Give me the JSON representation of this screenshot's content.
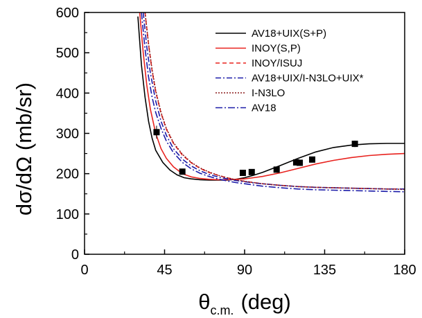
{
  "chart_data": {
    "type": "line",
    "title": "",
    "ylabel": "dσ/dΩ (mb/sr)",
    "xlabel_main": "θ",
    "xlabel_sub": "c.m.",
    "xlabel_unit": "(deg)",
    "xlim": [
      0,
      180
    ],
    "ylim": [
      0,
      600
    ],
    "xticks": [
      0,
      45,
      90,
      135,
      180
    ],
    "yticks": [
      0,
      100,
      200,
      300,
      400,
      500,
      600
    ],
    "grid": false,
    "legend_position": "top-right",
    "series": [
      {
        "name": "AV18+UIX(S+P)",
        "color": "#000000",
        "dash": "solid",
        "x": [
          30,
          32,
          34,
          36,
          38,
          40,
          44,
          48,
          52,
          56,
          60,
          65,
          70,
          75,
          80,
          85,
          90,
          95,
          100,
          110,
          120,
          130,
          140,
          150,
          160,
          170,
          180
        ],
        "y": [
          590,
          470,
          390,
          330,
          288,
          258,
          228,
          209,
          197,
          190,
          187,
          185,
          184,
          184,
          184,
          186,
          190,
          196,
          203,
          220,
          238,
          254,
          265,
          271,
          274,
          275,
          275
        ]
      },
      {
        "name": "INOY(S,P)",
        "color": "#e8211d",
        "dash": "solid",
        "x": [
          31,
          33,
          35,
          37,
          40,
          43,
          46,
          50,
          55,
          60,
          65,
          70,
          75,
          80,
          85,
          90,
          95,
          100,
          110,
          120,
          130,
          140,
          150,
          160,
          170,
          180
        ],
        "y": [
          600,
          500,
          420,
          360,
          300,
          262,
          238,
          217,
          200,
          192,
          188,
          186,
          185,
          185,
          186,
          187,
          190,
          193,
          202,
          213,
          224,
          233,
          240,
          245,
          248,
          250
        ]
      },
      {
        "name": "INOY/ISUJ",
        "color": "#e8211d",
        "dash": "6,4",
        "x": [
          34,
          36,
          38,
          40,
          43,
          46,
          50,
          55,
          60,
          65,
          70,
          75,
          80,
          85,
          90,
          95,
          100,
          110,
          120,
          130,
          140,
          150,
          160,
          170,
          180
        ],
        "y": [
          600,
          520,
          455,
          403,
          350,
          310,
          275,
          246,
          227,
          213,
          203,
          196,
          190,
          185,
          181,
          178,
          175,
          171,
          168,
          166,
          165,
          164,
          163,
          162,
          162
        ]
      },
      {
        "name": "AV18+UIX/I-N3LO+UIX*",
        "color": "#1a1aa8",
        "dash": "8,3,2,3",
        "x": [
          33,
          35,
          37,
          40,
          43,
          46,
          50,
          55,
          60,
          65,
          70,
          75,
          80,
          85,
          90,
          95,
          100,
          110,
          120,
          130,
          140,
          150,
          160,
          170,
          180
        ],
        "y": [
          600,
          515,
          450,
          380,
          330,
          295,
          262,
          236,
          219,
          207,
          198,
          192,
          187,
          183,
          180,
          177,
          175,
          171,
          168,
          166,
          165,
          164,
          163,
          162,
          162
        ]
      },
      {
        "name": "I-N3LO",
        "color": "#8b1a1a",
        "dash": "2,2",
        "x": [
          34,
          36,
          38,
          40,
          43,
          46,
          50,
          55,
          60,
          65,
          70,
          75,
          80,
          85,
          90,
          95,
          100,
          110,
          120,
          130,
          140,
          150,
          160,
          170,
          180
        ],
        "y": [
          600,
          522,
          458,
          406,
          352,
          312,
          277,
          248,
          228,
          214,
          204,
          196,
          190,
          185,
          181,
          178,
          175,
          171,
          168,
          166,
          165,
          164,
          163,
          162,
          161
        ]
      },
      {
        "name": "AV18",
        "color": "#1a1aa8",
        "dash": "10,3,2,3",
        "x": [
          32,
          34,
          36,
          38,
          40,
          43,
          46,
          50,
          55,
          60,
          65,
          70,
          75,
          80,
          85,
          90,
          95,
          100,
          110,
          120,
          130,
          140,
          150,
          160,
          170,
          180
        ],
        "y": [
          600,
          510,
          440,
          390,
          352,
          312,
          281,
          252,
          228,
          212,
          201,
          193,
          187,
          182,
          178,
          175,
          172,
          169,
          165,
          162,
          160,
          159,
          158,
          157,
          156,
          155
        ]
      }
    ],
    "data_points": {
      "x": [
        40.5,
        55,
        89,
        94,
        108,
        119,
        121,
        128,
        152
      ],
      "y": [
        303,
        205,
        202,
        204,
        210,
        228,
        227,
        235,
        274
      ],
      "err": [
        16,
        5,
        5,
        5,
        7,
        6,
        6,
        6,
        8
      ]
    }
  }
}
